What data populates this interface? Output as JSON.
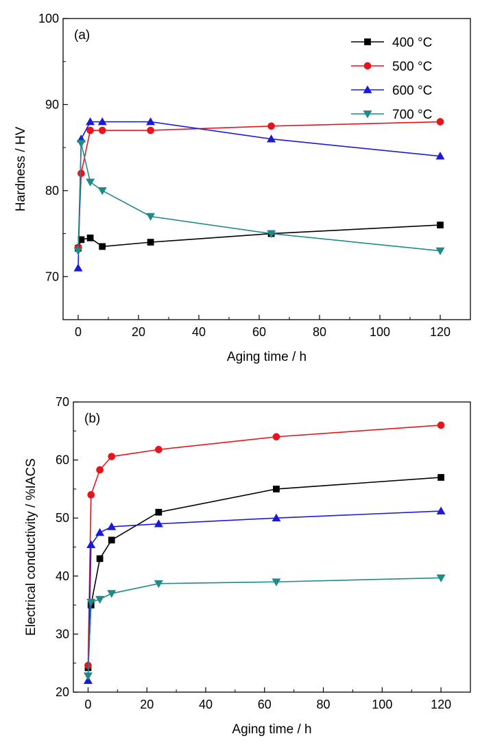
{
  "chart_data": [
    {
      "type": "line",
      "panel_label": "(a)",
      "xlabel": "Aging time / h",
      "ylabel": "Hardness / HV",
      "xlim": [
        -5,
        130
      ],
      "ylim": [
        65,
        100
      ],
      "xticks": [
        0,
        20,
        40,
        60,
        80,
        100,
        120
      ],
      "yticks": [
        70,
        80,
        90,
        100
      ],
      "legend_position": "top-right",
      "series": [
        {
          "name": "400 °C",
          "color": "#000000",
          "marker": "square",
          "x": [
            0,
            1,
            4,
            8,
            24,
            64,
            120
          ],
          "y": [
            73.3,
            74.3,
            74.5,
            73.5,
            74.0,
            75.0,
            76.0
          ]
        },
        {
          "name": "500 °C",
          "color": "#e8141c",
          "marker": "circle",
          "x": [
            0,
            1,
            4,
            8,
            24,
            64,
            120
          ],
          "y": [
            73.4,
            82.0,
            87.0,
            87.0,
            87.0,
            87.5,
            88.0
          ]
        },
        {
          "name": "600 °C",
          "color": "#1a1adb",
          "marker": "triangle-up",
          "x": [
            0,
            1,
            4,
            8,
            24,
            64,
            120
          ],
          "y": [
            71.0,
            86.0,
            88.0,
            88.0,
            88.0,
            86.0,
            84.0
          ]
        },
        {
          "name": "700 °C",
          "color": "#1f8a8a",
          "marker": "triangle-down",
          "x": [
            0,
            1,
            4,
            8,
            24,
            64,
            120
          ],
          "y": [
            73.0,
            85.5,
            81.0,
            80.0,
            77.0,
            75.0,
            73.0
          ]
        }
      ]
    },
    {
      "type": "line",
      "panel_label": "(b)",
      "xlabel": "Aging time / h",
      "ylabel": "Electrical conductivity / %IACS",
      "xlim": [
        -5,
        130
      ],
      "ylim": [
        20,
        70
      ],
      "xticks": [
        0,
        20,
        40,
        60,
        80,
        100,
        120
      ],
      "yticks": [
        20,
        30,
        40,
        50,
        60,
        70
      ],
      "series": [
        {
          "name": "400 °C",
          "color": "#000000",
          "marker": "square",
          "x": [
            0,
            1,
            4,
            8,
            24,
            64,
            120
          ],
          "y": [
            24.2,
            35.0,
            43.0,
            46.2,
            51.0,
            55.0,
            57.0
          ]
        },
        {
          "name": "500 °C",
          "color": "#e8141c",
          "marker": "circle",
          "x": [
            0,
            1,
            4,
            8,
            24,
            64,
            120
          ],
          "y": [
            24.6,
            54.0,
            58.3,
            60.6,
            61.8,
            64.0,
            66.0
          ]
        },
        {
          "name": "600 °C",
          "color": "#1a1adb",
          "marker": "triangle-up",
          "x": [
            0,
            1,
            4,
            8,
            24,
            64,
            120
          ],
          "y": [
            22.0,
            45.4,
            47.5,
            48.5,
            49.0,
            50.0,
            51.2
          ]
        },
        {
          "name": "700 °C",
          "color": "#1f8a8a",
          "marker": "triangle-down",
          "x": [
            0,
            1,
            4,
            8,
            24,
            64,
            120
          ],
          "y": [
            22.8,
            35.5,
            36.0,
            37.0,
            38.7,
            39.0,
            39.7
          ]
        }
      ]
    }
  ]
}
